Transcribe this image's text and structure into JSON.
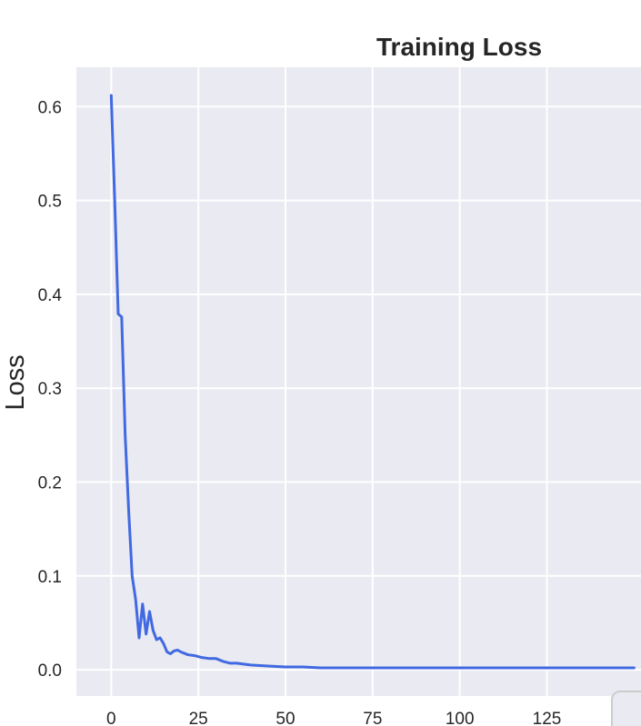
{
  "chart_data": {
    "type": "line",
    "title": "Training Loss",
    "xlabel": "",
    "ylabel": "Loss",
    "xlim": [
      -10,
      152
    ],
    "ylim": [
      -0.028,
      0.642
    ],
    "xticks": [
      0,
      25,
      50,
      75,
      100,
      125
    ],
    "yticks": [
      0.0,
      0.1,
      0.2,
      0.3,
      0.4,
      0.5,
      0.6
    ],
    "xtick_labels": [
      "0",
      "25",
      "50",
      "75",
      "100",
      "125"
    ],
    "ytick_labels": [
      "0.0",
      "0.1",
      "0.2",
      "0.3",
      "0.4",
      "0.5",
      "0.6"
    ],
    "grid": true,
    "legend": "bottom-right",
    "colors": {
      "background": "#eaeaf2",
      "grid": "#ffffff",
      "line": "#4169e1",
      "text": "#262626"
    },
    "series": [
      {
        "x": [
          0,
          1,
          2,
          3,
          4,
          5,
          6,
          7,
          8,
          9,
          10,
          11,
          12,
          13,
          14,
          15,
          16,
          17,
          18,
          19,
          20,
          22,
          24,
          26,
          28,
          30,
          32,
          34,
          36,
          38,
          40,
          45,
          50,
          55,
          60,
          70,
          80,
          90,
          100,
          110,
          120,
          130,
          140,
          150
        ],
        "y": [
          0.612,
          0.5,
          0.379,
          0.376,
          0.25,
          0.17,
          0.1,
          0.075,
          0.034,
          0.07,
          0.038,
          0.062,
          0.042,
          0.032,
          0.034,
          0.028,
          0.019,
          0.017,
          0.02,
          0.021,
          0.019,
          0.016,
          0.015,
          0.013,
          0.012,
          0.012,
          0.009,
          0.007,
          0.007,
          0.006,
          0.005,
          0.004,
          0.003,
          0.003,
          0.002,
          0.002,
          0.002,
          0.002,
          0.002,
          0.002,
          0.002,
          0.002,
          0.002,
          0.002
        ]
      }
    ]
  }
}
